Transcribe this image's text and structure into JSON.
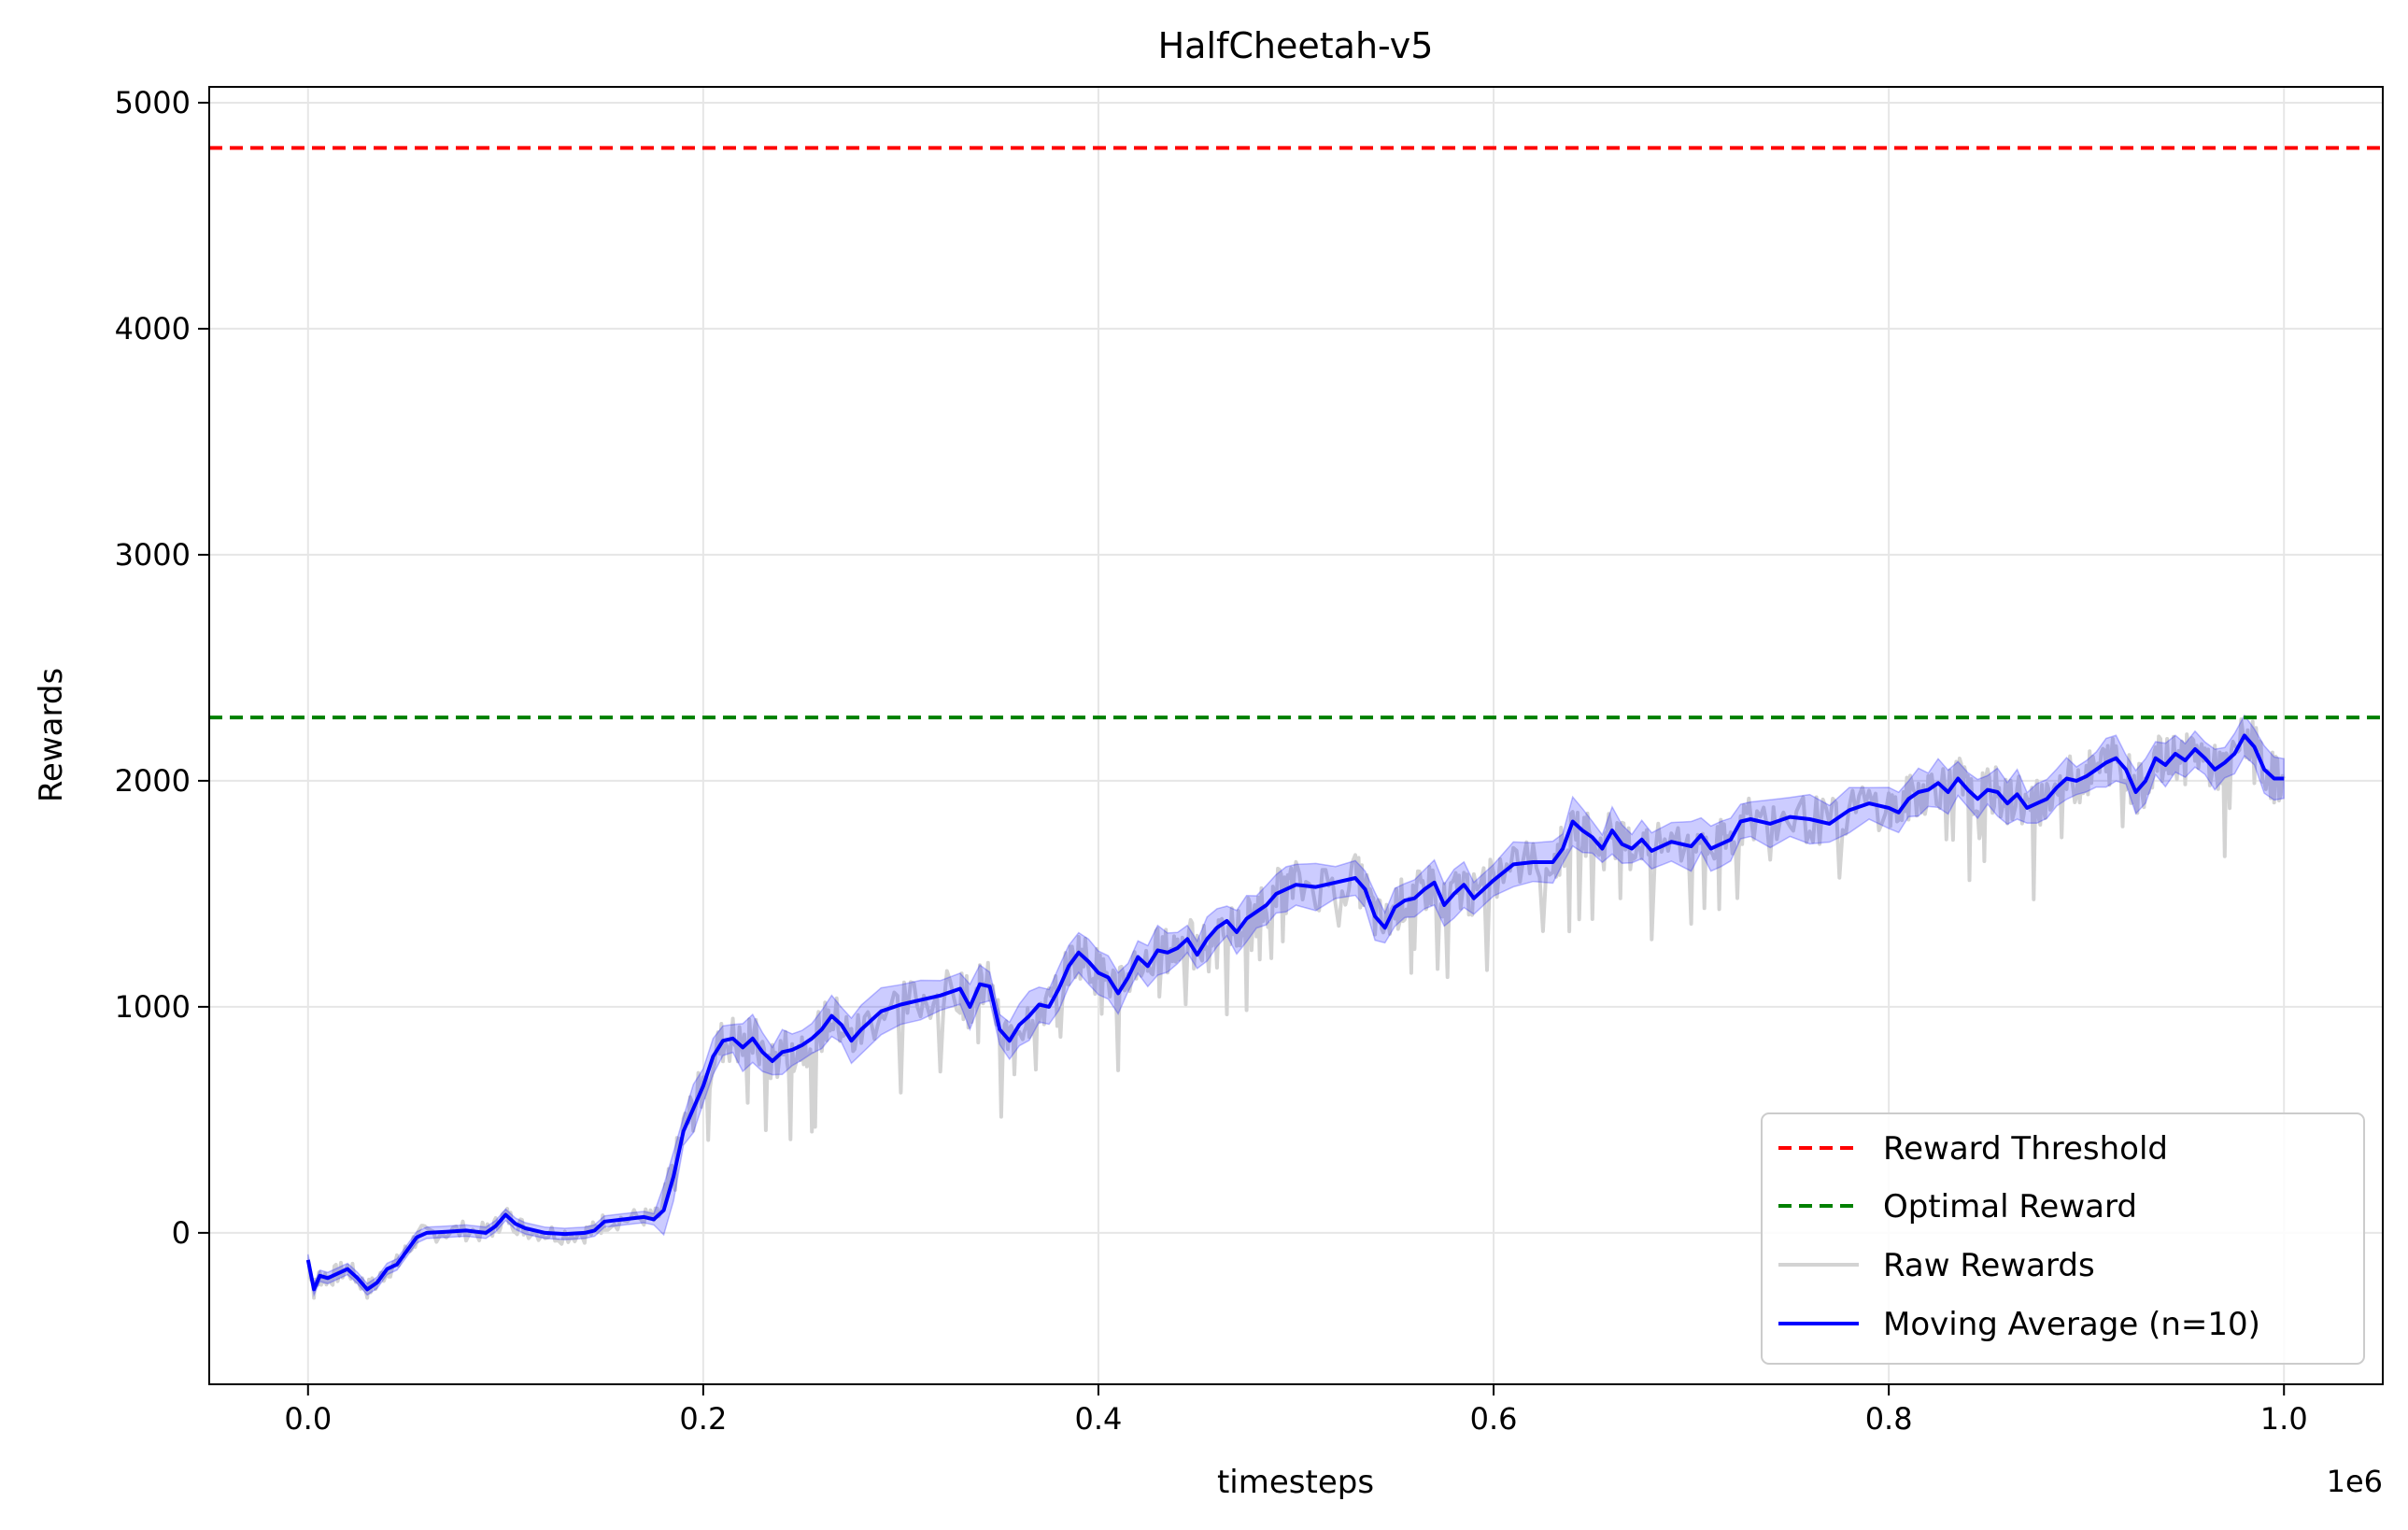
{
  "chart_data": {
    "type": "line",
    "title": "HalfCheetah-v5",
    "xlabel": "timesteps",
    "ylabel": "Rewards",
    "x_scale_label": "1e6",
    "xlim": [
      -50000,
      1050000
    ],
    "ylim": [
      -670,
      5070
    ],
    "x_ticks": [
      0,
      200000,
      400000,
      600000,
      800000,
      1000000
    ],
    "x_tick_labels": [
      "0.0",
      "0.2",
      "0.4",
      "0.6",
      "0.8",
      "1.0"
    ],
    "y_ticks": [
      0,
      1000,
      2000,
      3000,
      4000,
      5000
    ],
    "y_tick_labels": [
      "0",
      "1000",
      "2000",
      "3000",
      "4000",
      "5000"
    ],
    "grid": true,
    "legend_position": "lower-right",
    "reference_lines": [
      {
        "name": "Reward Threshold",
        "y": 4800,
        "color": "#ff0000",
        "style": "dashed"
      },
      {
        "name": "Optimal Reward",
        "y": 2280,
        "color": "#008000",
        "style": "dashed"
      }
    ],
    "series": [
      {
        "name": "Raw Rewards",
        "color": "#d3d3d3",
        "style": "solid"
      },
      {
        "name": "Moving Average (n=10)",
        "color": "#0000ff",
        "style": "solid",
        "band_color": "#0000ff",
        "x": [
          0,
          3000,
          6000,
          10000,
          15000,
          20000,
          25000,
          30000,
          35000,
          40000,
          45000,
          50000,
          55000,
          60000,
          70000,
          80000,
          90000,
          95000,
          100000,
          105000,
          110000,
          120000,
          130000,
          140000,
          145000,
          150000,
          160000,
          170000,
          175000,
          180000,
          185000,
          190000,
          195000,
          200000,
          205000,
          210000,
          215000,
          220000,
          225000,
          230000,
          235000,
          240000,
          245000,
          250000,
          255000,
          260000,
          265000,
          270000,
          275000,
          280000,
          290000,
          300000,
          310000,
          320000,
          330000,
          335000,
          340000,
          345000,
          350000,
          355000,
          360000,
          365000,
          370000,
          375000,
          380000,
          385000,
          390000,
          395000,
          400000,
          405000,
          410000,
          415000,
          420000,
          425000,
          430000,
          435000,
          440000,
          445000,
          450000,
          455000,
          460000,
          465000,
          470000,
          475000,
          480000,
          485000,
          490000,
          495000,
          500000,
          510000,
          520000,
          530000,
          535000,
          540000,
          545000,
          550000,
          555000,
          560000,
          565000,
          570000,
          575000,
          580000,
          585000,
          590000,
          600000,
          610000,
          620000,
          630000,
          635000,
          640000,
          645000,
          650000,
          655000,
          660000,
          665000,
          670000,
          675000,
          680000,
          690000,
          700000,
          705000,
          710000,
          715000,
          720000,
          725000,
          730000,
          740000,
          750000,
          760000,
          770000,
          780000,
          790000,
          800000,
          805000,
          810000,
          815000,
          820000,
          825000,
          830000,
          835000,
          840000,
          845000,
          850000,
          855000,
          860000,
          865000,
          870000,
          875000,
          880000,
          885000,
          890000,
          895000,
          900000,
          905000,
          910000,
          915000,
          920000,
          925000,
          930000,
          935000,
          940000,
          945000,
          950000,
          955000,
          960000,
          965000,
          970000,
          975000,
          980000,
          985000,
          990000,
          995000,
          1000000
        ],
        "values": [
          -120,
          -250,
          -190,
          -200,
          -180,
          -160,
          -200,
          -250,
          -220,
          -160,
          -140,
          -80,
          -20,
          0,
          5,
          10,
          0,
          30,
          80,
          40,
          20,
          0,
          -5,
          0,
          10,
          50,
          60,
          70,
          60,
          100,
          250,
          450,
          550,
          650,
          780,
          850,
          860,
          820,
          860,
          800,
          760,
          800,
          810,
          830,
          860,
          900,
          960,
          920,
          850,
          900,
          980,
          1010,
          1030,
          1050,
          1080,
          1000,
          1100,
          1090,
          900,
          850,
          920,
          960,
          1010,
          1000,
          1080,
          1180,
          1240,
          1200,
          1150,
          1130,
          1060,
          1130,
          1220,
          1180,
          1250,
          1240,
          1260,
          1300,
          1230,
          1300,
          1350,
          1380,
          1330,
          1390,
          1420,
          1450,
          1500,
          1520,
          1540,
          1530,
          1550,
          1570,
          1520,
          1400,
          1350,
          1440,
          1470,
          1480,
          1520,
          1550,
          1450,
          1500,
          1540,
          1480,
          1560,
          1630,
          1640,
          1640,
          1700,
          1820,
          1780,
          1750,
          1700,
          1780,
          1720,
          1700,
          1740,
          1690,
          1730,
          1710,
          1760,
          1700,
          1720,
          1740,
          1820,
          1830,
          1810,
          1840,
          1830,
          1810,
          1870,
          1900,
          1880,
          1860,
          1920,
          1950,
          1960,
          1990,
          1950,
          2010,
          1960,
          1920,
          1960,
          1950,
          1900,
          1940,
          1880,
          1900,
          1920,
          1970,
          2010,
          2000,
          2020,
          2050,
          2080,
          2100,
          2050,
          1950,
          2000,
          2100,
          2070,
          2120,
          2090,
          2140,
          2100,
          2050,
          2080,
          2120,
          2200,
          2150,
          2050,
          2010,
          2010
        ]
      }
    ]
  }
}
